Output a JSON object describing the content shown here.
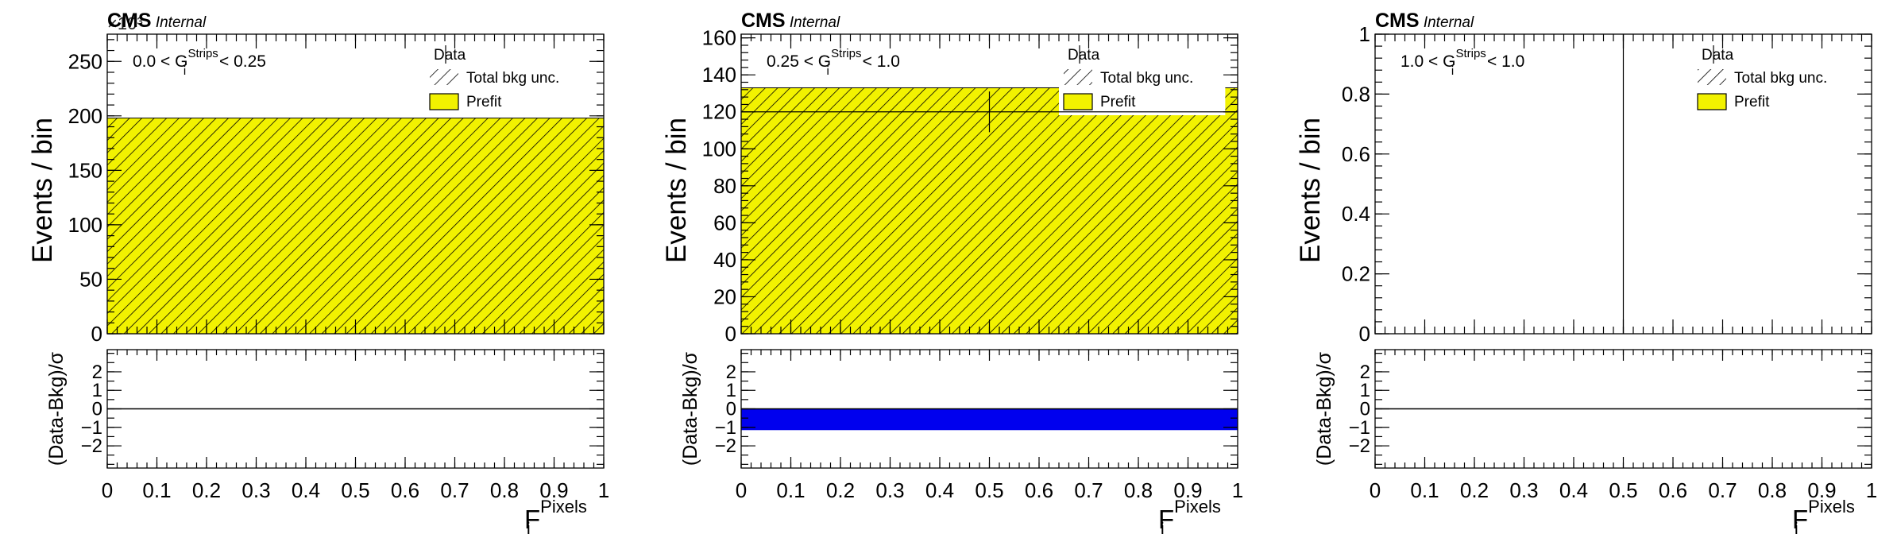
{
  "chart_data": [
    {
      "type": "bar",
      "panel": "left",
      "experiment": "CMS",
      "status": "Internal",
      "category": "0.0 < G_i^Strips < 0.25",
      "category_parts": {
        "pre": "0.0 < G",
        "sub": "i",
        "sup": "Strips",
        "post": " < 0.25"
      },
      "axis_multiplier": "×10³",
      "ylabel": "Events / bin",
      "ratio_ylabel": "(Data-Bkg)/σ",
      "xlabel": {
        "main": "F",
        "sub": "i",
        "sup": "Pixels"
      },
      "xlim": [
        0,
        1
      ],
      "ylim": [
        0,
        275
      ],
      "yticks": [
        0,
        50,
        100,
        150,
        200,
        250
      ],
      "yticklabels": [
        "0",
        "50",
        "100",
        "150",
        "200",
        "250"
      ],
      "xticks": [
        0,
        0.1,
        0.2,
        0.3,
        0.4,
        0.5,
        0.6,
        0.7,
        0.8,
        0.9,
        1
      ],
      "xticklabels": [
        "0",
        "0.1",
        "0.2",
        "0.3",
        "0.4",
        "0.5",
        "0.6",
        "0.7",
        "0.8",
        "0.9",
        "1"
      ],
      "ratio_ylim": [
        -3.2,
        3.2
      ],
      "ratio_yticks": [
        -2,
        -1,
        0,
        1,
        2
      ],
      "ratio_yticklabels": [
        "−2",
        "−1",
        "0",
        "1",
        "2"
      ],
      "prefit": [
        {
          "x0": 0,
          "x1": 1,
          "value": 198
        }
      ],
      "unc_band": [
        {
          "x0": 0,
          "x1": 1,
          "low": 0,
          "high": 198
        }
      ],
      "data_points": [],
      "ratio_band": [],
      "legend": {
        "placement": "top-right",
        "entries": [
          {
            "label": "Data",
            "kind": "marker"
          },
          {
            "label": "Total bkg unc.",
            "kind": "hatch"
          },
          {
            "label": "Prefit",
            "kind": "fill"
          }
        ]
      }
    },
    {
      "type": "bar",
      "panel": "middle",
      "experiment": "CMS",
      "status": "Internal",
      "category": "0.25 < G_i^Strips < 1.0",
      "category_parts": {
        "pre": "0.25 < G",
        "sub": "i",
        "sup": "Strips",
        "post": " < 1.0"
      },
      "axis_multiplier": "",
      "ylabel": "Events / bin",
      "ratio_ylabel": "(Data-Bkg)/σ",
      "xlabel": {
        "main": "F",
        "sub": "i",
        "sup": "Pixels"
      },
      "xlim": [
        0,
        1
      ],
      "ylim": [
        0,
        162
      ],
      "yticks": [
        0,
        20,
        40,
        60,
        80,
        100,
        120,
        140,
        160
      ],
      "yticklabels": [
        "0",
        "20",
        "40",
        "60",
        "80",
        "100",
        "120",
        "140",
        "160"
      ],
      "xticks": [
        0,
        0.1,
        0.2,
        0.3,
        0.4,
        0.5,
        0.6,
        0.7,
        0.8,
        0.9,
        1
      ],
      "xticklabels": [
        "0",
        "0.1",
        "0.2",
        "0.3",
        "0.4",
        "0.5",
        "0.6",
        "0.7",
        "0.8",
        "0.9",
        "1"
      ],
      "ratio_ylim": [
        -3.2,
        3.2
      ],
      "ratio_yticks": [
        -2,
        -1,
        0,
        1,
        2
      ],
      "ratio_yticklabels": [
        "−2",
        "−1",
        "0",
        "1",
        "2"
      ],
      "prefit": [
        {
          "x0": 0,
          "x1": 1,
          "value": 133
        }
      ],
      "unc_band": [
        {
          "x0": 0,
          "x1": 1,
          "low": 0,
          "high": 133
        }
      ],
      "data_points": [
        {
          "x": 0.5,
          "y": 120,
          "xerr": 0.5,
          "yerr": 11
        }
      ],
      "ratio_band": [
        {
          "x0": 0,
          "x1": 1,
          "low": -1.15,
          "high": 0
        }
      ],
      "legend": {
        "placement": "top-right",
        "entries": [
          {
            "label": "Data",
            "kind": "marker"
          },
          {
            "label": "Total bkg unc.",
            "kind": "hatch"
          },
          {
            "label": "Prefit",
            "kind": "fill"
          }
        ]
      }
    },
    {
      "type": "bar",
      "panel": "right",
      "experiment": "CMS",
      "status": "Internal",
      "category": "1.0 < G_i^Strips < 1.0",
      "category_parts": {
        "pre": "1.0 < G",
        "sub": "i",
        "sup": "Strips",
        "post": " < 1.0"
      },
      "axis_multiplier": "",
      "ylabel": "Events / bin",
      "ratio_ylabel": "(Data-Bkg)/σ",
      "xlabel": {
        "main": "F",
        "sub": "i",
        "sup": "Pixels"
      },
      "xlim": [
        0,
        1
      ],
      "ylim": [
        0,
        1
      ],
      "yticks": [
        0,
        0.2,
        0.4,
        0.6,
        0.8,
        1
      ],
      "yticklabels": [
        "0",
        "0.2",
        "0.4",
        "0.6",
        "0.8",
        "1"
      ],
      "xticks": [
        0,
        0.1,
        0.2,
        0.3,
        0.4,
        0.5,
        0.6,
        0.7,
        0.8,
        0.9,
        1
      ],
      "xticklabels": [
        "0",
        "0.1",
        "0.2",
        "0.3",
        "0.4",
        "0.5",
        "0.6",
        "0.7",
        "0.8",
        "0.9",
        "1"
      ],
      "ratio_ylim": [
        -3.2,
        3.2
      ],
      "ratio_yticks": [
        -2,
        -1,
        0,
        1,
        2
      ],
      "ratio_yticklabels": [
        "−2",
        "−1",
        "0",
        "1",
        "2"
      ],
      "prefit": [],
      "unc_band": [],
      "data_points": [
        {
          "x": 0.5,
          "y": 0,
          "xerr": 0,
          "yerr": 1.2
        }
      ],
      "ratio_band": [],
      "legend": {
        "placement": "top-right",
        "entries": [
          {
            "label": "Data",
            "kind": "marker"
          },
          {
            "label": "Total bkg unc.",
            "kind": "hatch"
          },
          {
            "label": "Prefit",
            "kind": "fill"
          }
        ]
      }
    }
  ],
  "colors": {
    "prefit": "#f2f200",
    "hatch": "#000000",
    "ratio_band": "#0000ee",
    "axis": "#000000"
  }
}
